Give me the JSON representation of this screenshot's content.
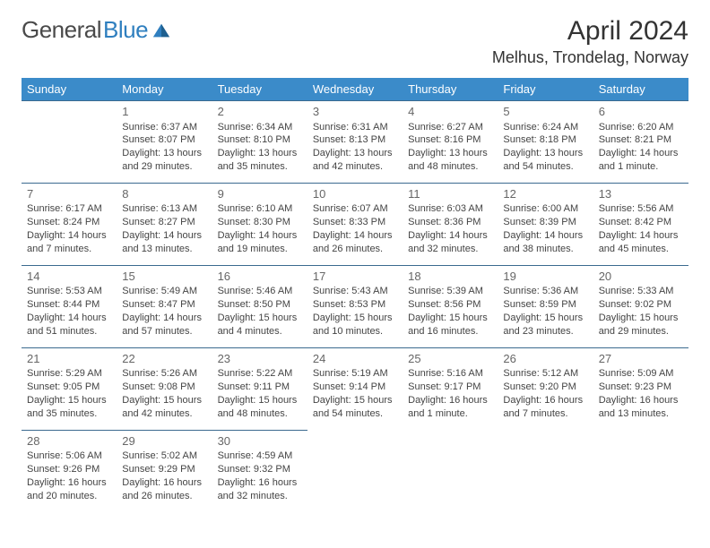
{
  "brand": {
    "part1": "General",
    "part2": "Blue"
  },
  "title": "April 2024",
  "location": "Melhus, Trondelag, Norway",
  "colors": {
    "header_bg": "#3b8bc9",
    "header_text": "#ffffff",
    "cell_border": "#3b6a8f",
    "body_text": "#444444",
    "daynum_text": "#666666",
    "brand_gray": "#4a4a4a",
    "brand_blue": "#2f7fbf",
    "page_bg": "#ffffff"
  },
  "typography": {
    "title_fontsize": 30,
    "location_fontsize": 18,
    "logo_fontsize": 26,
    "header_fontsize": 13,
    "daynum_fontsize": 13,
    "cell_fontsize": 11
  },
  "day_headers": [
    "Sunday",
    "Monday",
    "Tuesday",
    "Wednesday",
    "Thursday",
    "Friday",
    "Saturday"
  ],
  "weeks": [
    [
      null,
      {
        "n": "1",
        "sr": "Sunrise: 6:37 AM",
        "ss": "Sunset: 8:07 PM",
        "dl": "Daylight: 13 hours and 29 minutes."
      },
      {
        "n": "2",
        "sr": "Sunrise: 6:34 AM",
        "ss": "Sunset: 8:10 PM",
        "dl": "Daylight: 13 hours and 35 minutes."
      },
      {
        "n": "3",
        "sr": "Sunrise: 6:31 AM",
        "ss": "Sunset: 8:13 PM",
        "dl": "Daylight: 13 hours and 42 minutes."
      },
      {
        "n": "4",
        "sr": "Sunrise: 6:27 AM",
        "ss": "Sunset: 8:16 PM",
        "dl": "Daylight: 13 hours and 48 minutes."
      },
      {
        "n": "5",
        "sr": "Sunrise: 6:24 AM",
        "ss": "Sunset: 8:18 PM",
        "dl": "Daylight: 13 hours and 54 minutes."
      },
      {
        "n": "6",
        "sr": "Sunrise: 6:20 AM",
        "ss": "Sunset: 8:21 PM",
        "dl": "Daylight: 14 hours and 1 minute."
      }
    ],
    [
      {
        "n": "7",
        "sr": "Sunrise: 6:17 AM",
        "ss": "Sunset: 8:24 PM",
        "dl": "Daylight: 14 hours and 7 minutes."
      },
      {
        "n": "8",
        "sr": "Sunrise: 6:13 AM",
        "ss": "Sunset: 8:27 PM",
        "dl": "Daylight: 14 hours and 13 minutes."
      },
      {
        "n": "9",
        "sr": "Sunrise: 6:10 AM",
        "ss": "Sunset: 8:30 PM",
        "dl": "Daylight: 14 hours and 19 minutes."
      },
      {
        "n": "10",
        "sr": "Sunrise: 6:07 AM",
        "ss": "Sunset: 8:33 PM",
        "dl": "Daylight: 14 hours and 26 minutes."
      },
      {
        "n": "11",
        "sr": "Sunrise: 6:03 AM",
        "ss": "Sunset: 8:36 PM",
        "dl": "Daylight: 14 hours and 32 minutes."
      },
      {
        "n": "12",
        "sr": "Sunrise: 6:00 AM",
        "ss": "Sunset: 8:39 PM",
        "dl": "Daylight: 14 hours and 38 minutes."
      },
      {
        "n": "13",
        "sr": "Sunrise: 5:56 AM",
        "ss": "Sunset: 8:42 PM",
        "dl": "Daylight: 14 hours and 45 minutes."
      }
    ],
    [
      {
        "n": "14",
        "sr": "Sunrise: 5:53 AM",
        "ss": "Sunset: 8:44 PM",
        "dl": "Daylight: 14 hours and 51 minutes."
      },
      {
        "n": "15",
        "sr": "Sunrise: 5:49 AM",
        "ss": "Sunset: 8:47 PM",
        "dl": "Daylight: 14 hours and 57 minutes."
      },
      {
        "n": "16",
        "sr": "Sunrise: 5:46 AM",
        "ss": "Sunset: 8:50 PM",
        "dl": "Daylight: 15 hours and 4 minutes."
      },
      {
        "n": "17",
        "sr": "Sunrise: 5:43 AM",
        "ss": "Sunset: 8:53 PM",
        "dl": "Daylight: 15 hours and 10 minutes."
      },
      {
        "n": "18",
        "sr": "Sunrise: 5:39 AM",
        "ss": "Sunset: 8:56 PM",
        "dl": "Daylight: 15 hours and 16 minutes."
      },
      {
        "n": "19",
        "sr": "Sunrise: 5:36 AM",
        "ss": "Sunset: 8:59 PM",
        "dl": "Daylight: 15 hours and 23 minutes."
      },
      {
        "n": "20",
        "sr": "Sunrise: 5:33 AM",
        "ss": "Sunset: 9:02 PM",
        "dl": "Daylight: 15 hours and 29 minutes."
      }
    ],
    [
      {
        "n": "21",
        "sr": "Sunrise: 5:29 AM",
        "ss": "Sunset: 9:05 PM",
        "dl": "Daylight: 15 hours and 35 minutes."
      },
      {
        "n": "22",
        "sr": "Sunrise: 5:26 AM",
        "ss": "Sunset: 9:08 PM",
        "dl": "Daylight: 15 hours and 42 minutes."
      },
      {
        "n": "23",
        "sr": "Sunrise: 5:22 AM",
        "ss": "Sunset: 9:11 PM",
        "dl": "Daylight: 15 hours and 48 minutes."
      },
      {
        "n": "24",
        "sr": "Sunrise: 5:19 AM",
        "ss": "Sunset: 9:14 PM",
        "dl": "Daylight: 15 hours and 54 minutes."
      },
      {
        "n": "25",
        "sr": "Sunrise: 5:16 AM",
        "ss": "Sunset: 9:17 PM",
        "dl": "Daylight: 16 hours and 1 minute."
      },
      {
        "n": "26",
        "sr": "Sunrise: 5:12 AM",
        "ss": "Sunset: 9:20 PM",
        "dl": "Daylight: 16 hours and 7 minutes."
      },
      {
        "n": "27",
        "sr": "Sunrise: 5:09 AM",
        "ss": "Sunset: 9:23 PM",
        "dl": "Daylight: 16 hours and 13 minutes."
      }
    ],
    [
      {
        "n": "28",
        "sr": "Sunrise: 5:06 AM",
        "ss": "Sunset: 9:26 PM",
        "dl": "Daylight: 16 hours and 20 minutes."
      },
      {
        "n": "29",
        "sr": "Sunrise: 5:02 AM",
        "ss": "Sunset: 9:29 PM",
        "dl": "Daylight: 16 hours and 26 minutes."
      },
      {
        "n": "30",
        "sr": "Sunrise: 4:59 AM",
        "ss": "Sunset: 9:32 PM",
        "dl": "Daylight: 16 hours and 32 minutes."
      },
      null,
      null,
      null,
      null
    ]
  ]
}
